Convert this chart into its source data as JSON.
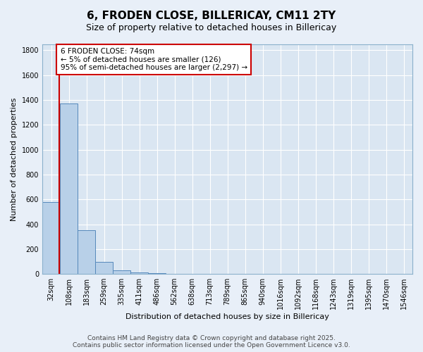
{
  "title": "6, FRODEN CLOSE, BILLERICAY, CM11 2TY",
  "subtitle": "Size of property relative to detached houses in Billericay",
  "xlabel": "Distribution of detached houses by size in Billericay",
  "ylabel": "Number of detached properties",
  "categories": [
    "32sqm",
    "108sqm",
    "183sqm",
    "259sqm",
    "335sqm",
    "411sqm",
    "486sqm",
    "562sqm",
    "638sqm",
    "713sqm",
    "789sqm",
    "865sqm",
    "940sqm",
    "1016sqm",
    "1092sqm",
    "1168sqm",
    "1243sqm",
    "1319sqm",
    "1395sqm",
    "1470sqm",
    "1546sqm"
  ],
  "values": [
    580,
    1370,
    350,
    95,
    30,
    15,
    5,
    0,
    0,
    0,
    0,
    0,
    0,
    0,
    0,
    0,
    0,
    0,
    0,
    0,
    0
  ],
  "bar_color": "#b8d0e8",
  "bar_edge_color": "#5588bb",
  "vline_color": "#cc0000",
  "annotation_text": "6 FRODEN CLOSE: 74sqm\n← 5% of detached houses are smaller (126)\n95% of semi-detached houses are larger (2,297) →",
  "annotation_box_facecolor": "#ffffff",
  "annotation_box_edgecolor": "#cc0000",
  "ylim": [
    0,
    1850
  ],
  "yticks": [
    0,
    200,
    400,
    600,
    800,
    1000,
    1200,
    1400,
    1600,
    1800
  ],
  "background_color": "#e8eff8",
  "plot_bg_color": "#dae6f2",
  "grid_color": "#ffffff",
  "footer_text": "Contains HM Land Registry data © Crown copyright and database right 2025.\nContains public sector information licensed under the Open Government Licence v3.0.",
  "title_fontsize": 11,
  "subtitle_fontsize": 9,
  "label_fontsize": 8,
  "tick_fontsize": 7,
  "annotation_fontsize": 7.5,
  "footer_fontsize": 6.5
}
